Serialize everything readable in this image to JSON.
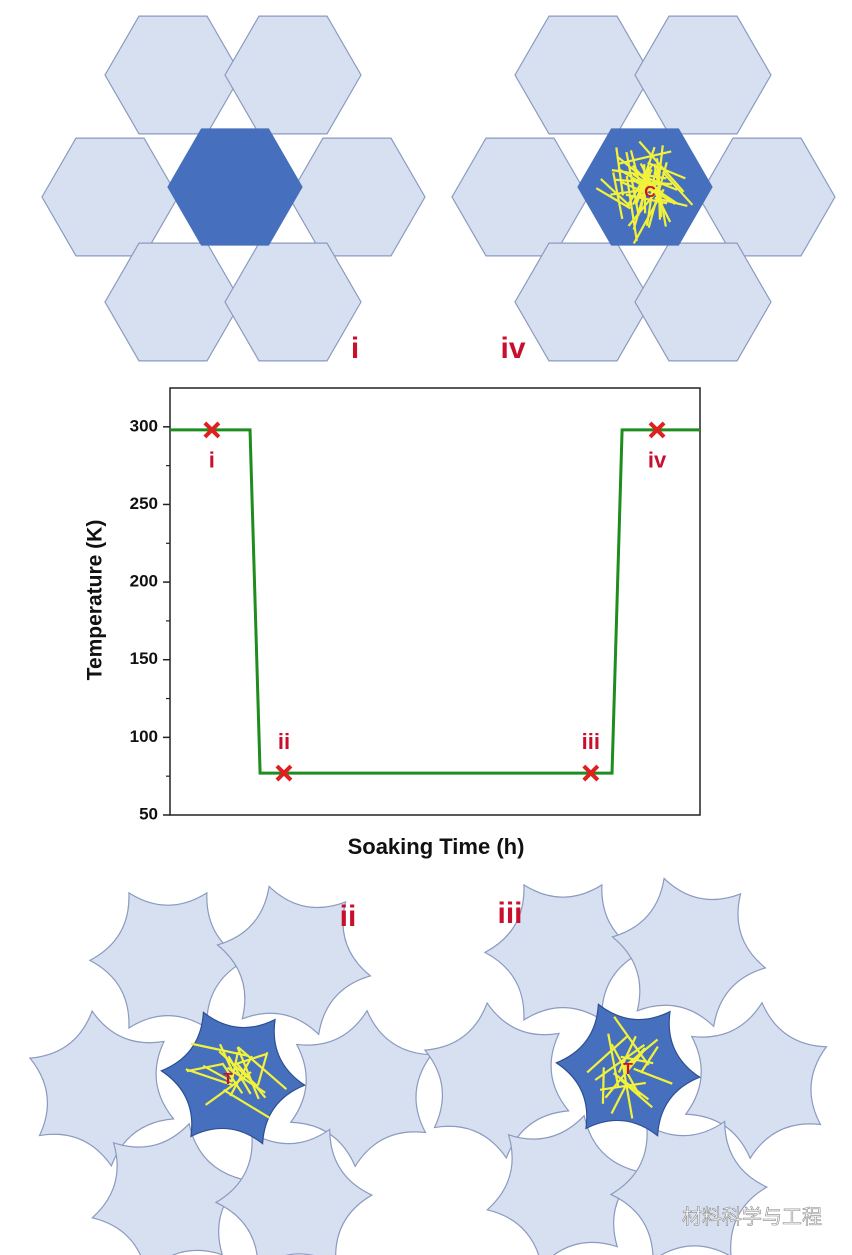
{
  "chart_data": {
    "type": "line",
    "ylabel": "Temperature (K)",
    "xlabel": "Soaking Time (h)",
    "ylim": [
      50,
      325
    ],
    "yticks": [
      50,
      100,
      150,
      200,
      250,
      300
    ],
    "y_minor_ticks": [
      75,
      125,
      175,
      225,
      275
    ],
    "xlim": [
      0,
      100
    ],
    "line": {
      "color": "#1e8c1e",
      "x": [
        0,
        15.1,
        17,
        83.4,
        85.3,
        100
      ],
      "y": [
        298,
        298,
        77,
        77,
        298,
        298
      ]
    },
    "points": {
      "color": "#e02020",
      "labels": [
        "i",
        "ii",
        "iii",
        "iv"
      ],
      "x": [
        7.9,
        21.5,
        79.4,
        91.9
      ],
      "y": [
        298,
        77,
        77,
        298
      ]
    }
  },
  "panels": {
    "top_left_label": "i",
    "top_right_label": "iv",
    "top_right_center": "C",
    "bottom_left_label": "ii",
    "bottom_left_center": "T",
    "bottom_right_label": "iii",
    "bottom_right_center": "T",
    "watermark": "材料科学与工程"
  }
}
